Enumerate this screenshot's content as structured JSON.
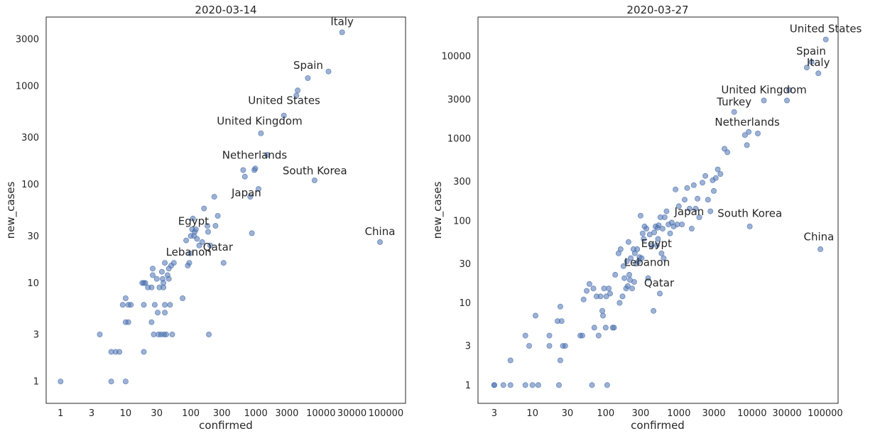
{
  "chart_data": [
    {
      "type": "scatter",
      "title": "2020-03-14",
      "xlabel": "confirmed",
      "ylabel": "new_cases",
      "xscale": "log",
      "yscale": "log",
      "xlim": [
        0.6,
        200000
      ],
      "ylim": [
        0.6,
        5000
      ],
      "xticks": [
        1,
        3,
        10,
        30,
        100,
        300,
        1000,
        3000,
        10000,
        30000,
        100000
      ],
      "yticks": [
        1,
        3,
        10,
        30,
        100,
        300,
        1000,
        3000
      ],
      "grid": false,
      "color": "#4c72b0",
      "points": [
        [
          1,
          1
        ],
        [
          4,
          3
        ],
        [
          6,
          2
        ],
        [
          6,
          1
        ],
        [
          7,
          2
        ],
        [
          8,
          2
        ],
        [
          9,
          6
        ],
        [
          10,
          7
        ],
        [
          10,
          4
        ],
        [
          10,
          1
        ],
        [
          11,
          4
        ],
        [
          11,
          6
        ],
        [
          12,
          6
        ],
        [
          18,
          10
        ],
        [
          19,
          10
        ],
        [
          19,
          6
        ],
        [
          19,
          2
        ],
        [
          20,
          10
        ],
        [
          22,
          9
        ],
        [
          25,
          4
        ],
        [
          25,
          9
        ],
        [
          26,
          12
        ],
        [
          26,
          14
        ],
        [
          27,
          3
        ],
        [
          28,
          6
        ],
        [
          30,
          11
        ],
        [
          31,
          5
        ],
        [
          32,
          3
        ],
        [
          33,
          9
        ],
        [
          35,
          3
        ],
        [
          36,
          13
        ],
        [
          37,
          11
        ],
        [
          38,
          10
        ],
        [
          38,
          9
        ],
        [
          39,
          3
        ],
        [
          40,
          6
        ],
        [
          40,
          5
        ],
        [
          40,
          16
        ],
        [
          42,
          3
        ],
        [
          44,
          12
        ],
        [
          46,
          11
        ],
        [
          46,
          14
        ],
        [
          48,
          6
        ],
        [
          50,
          15
        ],
        [
          52,
          3
        ],
        [
          55,
          16
        ],
        [
          75,
          7
        ],
        [
          85,
          27
        ],
        [
          90,
          15
        ],
        [
          95,
          16
        ],
        [
          98,
          20
        ],
        [
          100,
          30
        ],
        [
          105,
          35
        ],
        [
          108,
          45
        ],
        [
          112,
          30
        ],
        [
          115,
          33
        ],
        [
          120,
          35
        ],
        [
          125,
          28
        ],
        [
          135,
          24
        ],
        [
          150,
          26
        ],
        [
          160,
          57
        ],
        [
          180,
          38
        ],
        [
          185,
          33
        ],
        [
          190,
          3
        ],
        [
          200,
          24
        ],
        [
          230,
          75
        ],
        [
          240,
          38
        ],
        [
          260,
          48
        ],
        [
          320,
          16
        ],
        [
          640,
          140
        ],
        [
          680,
          120
        ],
        [
          820,
          75
        ],
        [
          870,
          32
        ],
        [
          950,
          140
        ],
        [
          980,
          145
        ],
        [
          1100,
          90
        ],
        [
          1200,
          330
        ],
        [
          1500,
          200
        ],
        [
          2700,
          500
        ],
        [
          4200,
          800
        ],
        [
          4400,
          900
        ],
        [
          6300,
          1200
        ],
        [
          13100,
          1400
        ],
        [
          8000,
          110
        ],
        [
          21200,
          3500
        ],
        [
          80900,
          26
        ]
      ],
      "annotations": [
        {
          "label": "Italy",
          "x": 21157,
          "y": 3497
        },
        {
          "label": "Spain",
          "x": 6391,
          "y": 1266
        },
        {
          "label": "United States",
          "x": 2727,
          "y": 556
        },
        {
          "label": "United Kingdom",
          "x": 1143,
          "y": 342
        },
        {
          "label": "Netherlands",
          "x": 959,
          "y": 155
        },
        {
          "label": "South Korea",
          "x": 8086,
          "y": 107
        },
        {
          "label": "Japan",
          "x": 716,
          "y": 64
        },
        {
          "label": "China",
          "x": 80991,
          "y": 26
        },
        {
          "label": "Egypt",
          "x": 110,
          "y": 33
        },
        {
          "label": "Lebanon",
          "x": 93,
          "y": 16
        },
        {
          "label": "Qatar",
          "x": 262,
          "y": 18
        }
      ]
    },
    {
      "type": "scatter",
      "title": "2020-03-27",
      "xlabel": "confirmed",
      "ylabel": "new_cases",
      "xscale": "log",
      "yscale": "log",
      "xlim": [
        1.8,
        150000
      ],
      "ylim": [
        0.6,
        30000
      ],
      "xticks": [
        3,
        10,
        30,
        100,
        300,
        1000,
        3000,
        10000,
        30000,
        100000
      ],
      "yticks": [
        1,
        3,
        10,
        30,
        100,
        300,
        1000,
        3000,
        10000
      ],
      "grid": false,
      "color": "#4c72b0",
      "points": [
        [
          3,
          1
        ],
        [
          3,
          1
        ],
        [
          4,
          1
        ],
        [
          5,
          1
        ],
        [
          5,
          2
        ],
        [
          8,
          4
        ],
        [
          8,
          1
        ],
        [
          9,
          3
        ],
        [
          10,
          1
        ],
        [
          11,
          7
        ],
        [
          12,
          1
        ],
        [
          17,
          4
        ],
        [
          17,
          3
        ],
        [
          22,
          6
        ],
        [
          23,
          1
        ],
        [
          24,
          2
        ],
        [
          24,
          9
        ],
        [
          25,
          6
        ],
        [
          26,
          3
        ],
        [
          28,
          3
        ],
        [
          45,
          4
        ],
        [
          48,
          4
        ],
        [
          50,
          11
        ],
        [
          55,
          14
        ],
        [
          60,
          17
        ],
        [
          65,
          1
        ],
        [
          68,
          15
        ],
        [
          70,
          5
        ],
        [
          75,
          12
        ],
        [
          80,
          4
        ],
        [
          85,
          12
        ],
        [
          90,
          8
        ],
        [
          92,
          7
        ],
        [
          95,
          15
        ],
        [
          100,
          5
        ],
        [
          102,
          12
        ],
        [
          105,
          1
        ],
        [
          110,
          15
        ],
        [
          115,
          13
        ],
        [
          125,
          5
        ],
        [
          130,
          5
        ],
        [
          135,
          22
        ],
        [
          150,
          40
        ],
        [
          155,
          10
        ],
        [
          160,
          45
        ],
        [
          170,
          12
        ],
        [
          175,
          28
        ],
        [
          180,
          20
        ],
        [
          190,
          15
        ],
        [
          195,
          32
        ],
        [
          200,
          16
        ],
        [
          205,
          55
        ],
        [
          210,
          22
        ],
        [
          215,
          19
        ],
        [
          220,
          35
        ],
        [
          230,
          15
        ],
        [
          240,
          45
        ],
        [
          245,
          18
        ],
        [
          250,
          40
        ],
        [
          260,
          30
        ],
        [
          270,
          45
        ],
        [
          280,
          32
        ],
        [
          290,
          36
        ],
        [
          300,
          115
        ],
        [
          310,
          35
        ],
        [
          320,
          70
        ],
        [
          330,
          60
        ],
        [
          340,
          85
        ],
        [
          360,
          80
        ],
        [
          380,
          20
        ],
        [
          400,
          68
        ],
        [
          420,
          50
        ],
        [
          450,
          8
        ],
        [
          460,
          72
        ],
        [
          480,
          85
        ],
        [
          500,
          50
        ],
        [
          510,
          82
        ],
        [
          520,
          60
        ],
        [
          530,
          88
        ],
        [
          550,
          13
        ],
        [
          560,
          110
        ],
        [
          580,
          40
        ],
        [
          600,
          80
        ],
        [
          620,
          35
        ],
        [
          640,
          110
        ],
        [
          680,
          130
        ],
        [
          720,
          90
        ],
        [
          760,
          70
        ],
        [
          800,
          95
        ],
        [
          850,
          85
        ],
        [
          900,
          240
        ],
        [
          950,
          90
        ],
        [
          1000,
          150
        ],
        [
          1100,
          90
        ],
        [
          1200,
          180
        ],
        [
          1300,
          250
        ],
        [
          1400,
          140
        ],
        [
          1500,
          80
        ],
        [
          1600,
          270
        ],
        [
          1700,
          140
        ],
        [
          1800,
          185
        ],
        [
          1900,
          110
        ],
        [
          2100,
          290
        ],
        [
          2300,
          350
        ],
        [
          2500,
          180
        ],
        [
          2700,
          130
        ],
        [
          2900,
          310
        ],
        [
          3000,
          230
        ],
        [
          3200,
          330
        ],
        [
          3400,
          420
        ],
        [
          3700,
          370
        ],
        [
          4200,
          750
        ],
        [
          4600,
          680
        ],
        [
          5700,
          2100
        ],
        [
          8000,
          1100
        ],
        [
          8500,
          830
        ],
        [
          9000,
          1200
        ],
        [
          12000,
          1150
        ],
        [
          14500,
          2900
        ],
        [
          30000,
          2900
        ],
        [
          32000,
          3900
        ],
        [
          56000,
          7300
        ],
        [
          65000,
          8500
        ],
        [
          80500,
          6200
        ],
        [
          86000,
          45
        ],
        [
          9300,
          85
        ],
        [
          102000,
          16000
        ]
      ],
      "annotations": [
        {
          "label": "United States",
          "x": 101657,
          "y": 16000
        },
        {
          "label": "Spain",
          "x": 64059,
          "y": 8578
        },
        {
          "label": "Italy",
          "x": 80589,
          "y": 6203
        },
        {
          "label": "United Kingdom",
          "x": 14543,
          "y": 2885
        },
        {
          "label": "Turkey",
          "x": 5698,
          "y": 2069
        },
        {
          "label": "Netherlands",
          "x": 8603,
          "y": 1172
        },
        {
          "label": "South Korea",
          "x": 9332,
          "y": 91
        },
        {
          "label": "Japan",
          "x": 1387,
          "y": 96
        },
        {
          "label": "China",
          "x": 81897,
          "y": 47
        },
        {
          "label": "Egypt",
          "x": 495,
          "y": 39
        },
        {
          "label": "Lebanon",
          "x": 368,
          "y": 23
        },
        {
          "label": "Qatar",
          "x": 537,
          "y": 13
        }
      ]
    }
  ]
}
